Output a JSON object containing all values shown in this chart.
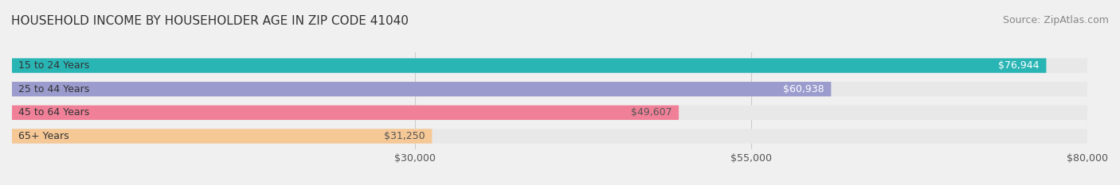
{
  "title": "HOUSEHOLD INCOME BY HOUSEHOLDER AGE IN ZIP CODE 41040",
  "source": "Source: ZipAtlas.com",
  "categories": [
    "15 to 24 Years",
    "25 to 44 Years",
    "45 to 64 Years",
    "65+ Years"
  ],
  "values": [
    76944,
    60938,
    49607,
    31250
  ],
  "bar_colors": [
    "#2ab5b5",
    "#9b9bce",
    "#f08098",
    "#f5c896"
  ],
  "label_colors": [
    "#ffffff",
    "#ffffff",
    "#555555",
    "#555555"
  ],
  "value_labels": [
    "$76,944",
    "$60,938",
    "$49,607",
    "$31,250"
  ],
  "xlim": [
    0,
    80000
  ],
  "xticks": [
    30000,
    55000,
    80000
  ],
  "xtick_labels": [
    "$30,000",
    "$55,000",
    "$80,000"
  ],
  "background_color": "#f0f0f0",
  "bar_bg_color": "#e8e8e8",
  "title_fontsize": 11,
  "source_fontsize": 9,
  "label_fontsize": 9,
  "value_fontsize": 9
}
